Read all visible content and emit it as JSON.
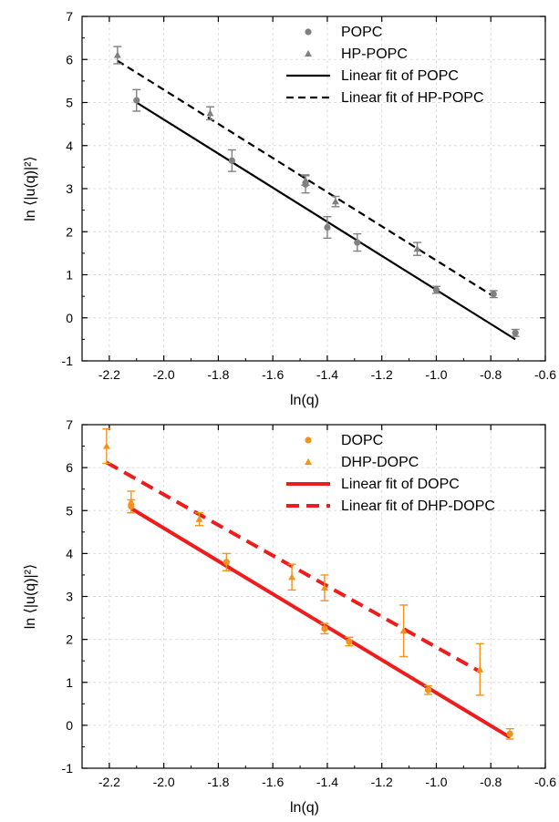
{
  "chart_data": [
    {
      "type": "scatter",
      "xlabel": "ln(q)",
      "ylabel": "ln ⟨|u(q)|²⟩",
      "xlim": [
        -2.3,
        -0.6
      ],
      "ylim": [
        -1,
        7
      ],
      "xticks": [
        -2.2,
        -2.0,
        -1.8,
        -1.6,
        -1.4,
        -1.2,
        -1.0,
        -0.8,
        -0.6
      ],
      "xtick_labels": [
        "-2.2",
        "-2.0",
        "-1.8",
        "-1.6",
        "-1.4",
        "-1.2",
        "-1.0",
        "-0.8",
        "-0.6"
      ],
      "yticks": [
        -1,
        0,
        1,
        2,
        3,
        4,
        5,
        6,
        7
      ],
      "ytick_labels": [
        "-1",
        "0",
        "1",
        "2",
        "3",
        "4",
        "5",
        "6",
        "7"
      ],
      "grid": true,
      "legend_position": "top-right",
      "series": [
        {
          "name": "POPC",
          "marker": "circle",
          "color": "#808080",
          "x": [
            -2.1,
            -1.75,
            -1.48,
            -1.4,
            -1.29,
            -1.0,
            -0.79,
            -0.71
          ],
          "y": [
            5.05,
            3.65,
            3.1,
            2.1,
            1.75,
            0.65,
            0.55,
            -0.35
          ],
          "err": [
            0.25,
            0.25,
            0.2,
            0.25,
            0.2,
            0.08,
            0.08,
            0.08
          ]
        },
        {
          "name": "HP-POPC",
          "marker": "triangle",
          "color": "#808080",
          "x": [
            -2.17,
            -1.83,
            -1.48,
            -1.37,
            -1.07
          ],
          "y": [
            6.1,
            4.75,
            3.2,
            2.7,
            1.6
          ],
          "err": [
            0.2,
            0.15,
            0.12,
            0.12,
            0.15
          ]
        },
        {
          "name": "Linear fit of POPC",
          "type": "line",
          "style": "solid",
          "color": "#000000",
          "x": [
            -2.1,
            -0.71
          ],
          "y": [
            5.0,
            -0.5
          ]
        },
        {
          "name": "Linear fit of HP-POPC",
          "type": "line",
          "style": "dashed",
          "color": "#000000",
          "x": [
            -2.17,
            -0.79
          ],
          "y": [
            5.97,
            0.5
          ]
        }
      ]
    },
    {
      "type": "scatter",
      "xlabel": "ln(q)",
      "ylabel": "ln ⟨|u(q)|²⟩",
      "xlim": [
        -2.3,
        -0.6
      ],
      "ylim": [
        -1,
        7
      ],
      "xticks": [
        -2.2,
        -2.0,
        -1.8,
        -1.6,
        -1.4,
        -1.2,
        -1.0,
        -0.8,
        -0.6
      ],
      "xtick_labels": [
        "-2.2",
        "-2.0",
        "-1.8",
        "-1.6",
        "-1.4",
        "-1.2",
        "-1.0",
        "-0.8",
        "-0.6"
      ],
      "yticks": [
        -1,
        0,
        1,
        2,
        3,
        4,
        5,
        6,
        7
      ],
      "ytick_labels": [
        "-1",
        "0",
        "1",
        "2",
        "3",
        "4",
        "5",
        "6",
        "7"
      ],
      "grid": true,
      "legend_position": "top-right",
      "series": [
        {
          "name": "DOPC",
          "marker": "circle",
          "color": "#f5921e",
          "x": [
            -2.12,
            -1.77,
            -1.41,
            -1.32,
            -1.03,
            -0.73
          ],
          "y": [
            5.1,
            3.8,
            2.25,
            1.95,
            0.82,
            -0.2
          ],
          "err": [
            0.15,
            0.2,
            0.12,
            0.1,
            0.1,
            0.12
          ]
        },
        {
          "name": "DHP-DOPC",
          "marker": "triangle",
          "color": "#f5921e",
          "x": [
            -2.21,
            -2.12,
            -1.87,
            -1.53,
            -1.41,
            -1.12,
            -0.84
          ],
          "y": [
            6.5,
            5.2,
            4.8,
            3.45,
            3.2,
            2.2,
            1.3
          ],
          "err": [
            0.4,
            0.25,
            0.15,
            0.3,
            0.3,
            0.6,
            0.6
          ]
        },
        {
          "name": "Linear fit of DOPC",
          "type": "line",
          "style": "solid",
          "color": "#ee1c1c",
          "x": [
            -2.12,
            -0.73
          ],
          "y": [
            5.05,
            -0.28
          ]
        },
        {
          "name": "Linear fit of DHP-DOPC",
          "type": "line",
          "style": "dashed",
          "color": "#ee1c1c",
          "x": [
            -2.21,
            -0.84
          ],
          "y": [
            6.12,
            1.25
          ]
        }
      ]
    }
  ]
}
